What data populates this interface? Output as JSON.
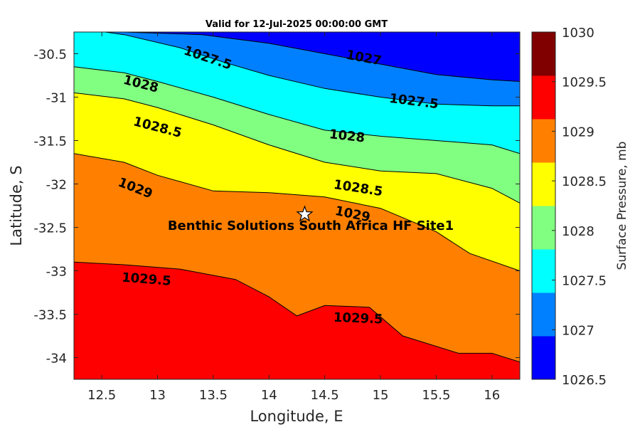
{
  "chart_data": {
    "type": "contour",
    "title": "Valid for 12-Jul-2025 00:00:00 GMT",
    "xlabel": "Longitude, E",
    "ylabel": "Latitude, S",
    "xlim": [
      12.25,
      16.25
    ],
    "ylim": [
      -34.25,
      -30.25
    ],
    "xticks": [
      "12.5",
      "13",
      "13.5",
      "14",
      "14.5",
      "15",
      "15.5",
      "16"
    ],
    "yticks": [
      "-30.5",
      "-31",
      "-31.5",
      "-32",
      "-32.5",
      "-33",
      "-33.5",
      "-34"
    ],
    "colorbar": {
      "label": "Surface Pressure, mb",
      "ticks": [
        "1026.5",
        "1027",
        "1027.5",
        "1028",
        "1028.5",
        "1029",
        "1029.5",
        "1030"
      ],
      "colors": [
        "#0000ff",
        "#0080ff",
        "#00ffff",
        "#80ff80",
        "#ffff00",
        "#ff8000",
        "#ff0000",
        "#800000"
      ]
    },
    "contour_lines": [
      {
        "level": 1027,
        "points": [
          [
            12.7,
            -30.25
          ],
          [
            13.4,
            -30.28
          ],
          [
            14.0,
            -30.38
          ],
          [
            14.5,
            -30.5
          ],
          [
            15.0,
            -30.62
          ],
          [
            15.5,
            -30.74
          ],
          [
            16.0,
            -30.8
          ],
          [
            16.25,
            -30.82
          ]
        ]
      },
      {
        "level": 1027.5,
        "points": [
          [
            12.25,
            -30.2
          ],
          [
            12.7,
            -30.28
          ],
          [
            13.2,
            -30.43
          ],
          [
            13.6,
            -30.6
          ],
          [
            14.0,
            -30.75
          ],
          [
            14.5,
            -30.9
          ],
          [
            15.0,
            -31.0
          ],
          [
            15.5,
            -31.08
          ],
          [
            16.0,
            -31.1
          ],
          [
            16.25,
            -31.1
          ]
        ]
      },
      {
        "level": 1028,
        "points": [
          [
            12.25,
            -30.65
          ],
          [
            12.7,
            -30.72
          ],
          [
            13.0,
            -30.82
          ],
          [
            13.5,
            -31.0
          ],
          [
            14.0,
            -31.2
          ],
          [
            14.5,
            -31.38
          ],
          [
            15.0,
            -31.45
          ],
          [
            15.5,
            -31.5
          ],
          [
            16.0,
            -31.55
          ],
          [
            16.25,
            -31.65
          ]
        ]
      },
      {
        "level": 1028.5,
        "points": [
          [
            12.25,
            -30.95
          ],
          [
            12.7,
            -31.02
          ],
          [
            13.0,
            -31.12
          ],
          [
            13.5,
            -31.32
          ],
          [
            14.0,
            -31.55
          ],
          [
            14.5,
            -31.75
          ],
          [
            15.0,
            -31.85
          ],
          [
            15.5,
            -31.88
          ],
          [
            16.0,
            -32.05
          ],
          [
            16.25,
            -32.22
          ]
        ]
      },
      {
        "level": 1029,
        "points": [
          [
            12.25,
            -31.65
          ],
          [
            12.7,
            -31.75
          ],
          [
            13.0,
            -31.9
          ],
          [
            13.5,
            -32.08
          ],
          [
            14.0,
            -32.1
          ],
          [
            14.5,
            -32.15
          ],
          [
            15.0,
            -32.28
          ],
          [
            15.5,
            -32.55
          ],
          [
            15.8,
            -32.8
          ],
          [
            16.25,
            -33.0
          ]
        ]
      },
      {
        "level": 1029.5,
        "points": [
          [
            12.25,
            -32.9
          ],
          [
            12.7,
            -32.93
          ],
          [
            13.2,
            -32.98
          ],
          [
            13.7,
            -33.1
          ],
          [
            14.0,
            -33.3
          ],
          [
            14.25,
            -33.52
          ],
          [
            14.5,
            -33.4
          ],
          [
            14.9,
            -33.42
          ],
          [
            15.2,
            -33.75
          ],
          [
            15.7,
            -33.95
          ],
          [
            16.0,
            -33.95
          ],
          [
            16.25,
            -34.05
          ]
        ]
      }
    ],
    "contour_labels": [
      {
        "text": "1027",
        "x": 14.85,
        "y": -30.55
      },
      {
        "text": "1027.5",
        "x": 13.45,
        "y": -30.55
      },
      {
        "text": "1027.5",
        "x": 15.3,
        "y": -31.05
      },
      {
        "text": "1028",
        "x": 12.85,
        "y": -30.85
      },
      {
        "text": "1028",
        "x": 14.7,
        "y": -31.45
      },
      {
        "text": "1028.5",
        "x": 13.0,
        "y": -31.35
      },
      {
        "text": "1028.5",
        "x": 14.8,
        "y": -32.05
      },
      {
        "text": "1029",
        "x": 12.8,
        "y": -32.05
      },
      {
        "text": "1029",
        "x": 14.75,
        "y": -32.35
      },
      {
        "text": "1029.5",
        "x": 12.9,
        "y": -33.1
      },
      {
        "text": "1029.5",
        "x": 14.8,
        "y": -33.55
      }
    ],
    "site": {
      "name": "Benthic Solutions South Africa HF Site1",
      "lon": 14.32,
      "lat": -32.35
    }
  }
}
